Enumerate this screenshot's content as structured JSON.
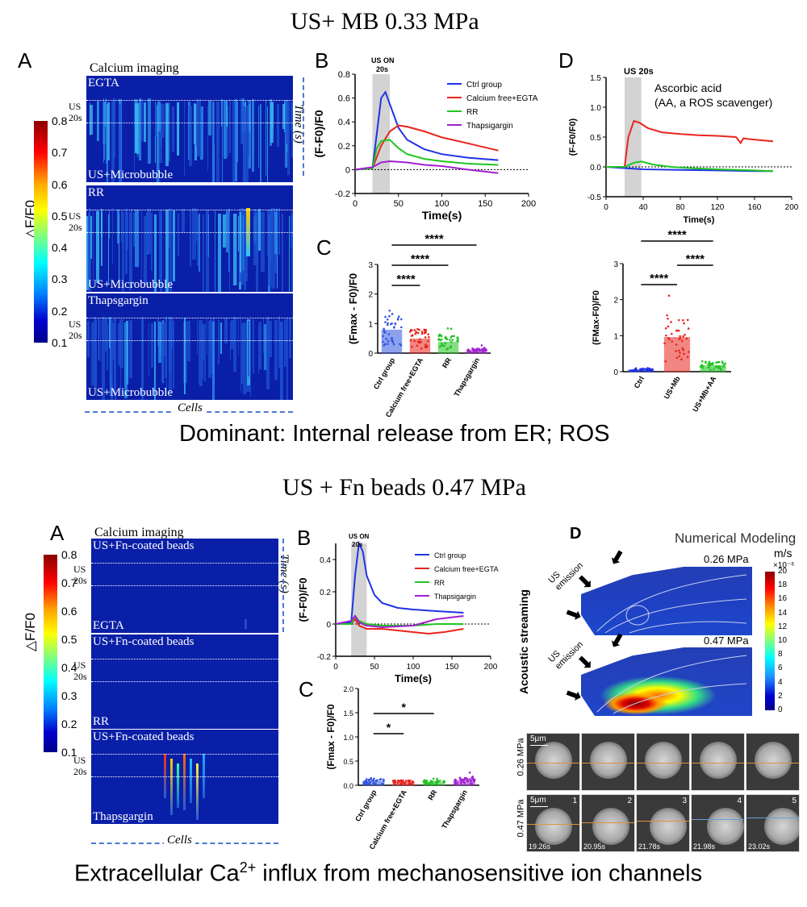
{
  "section1": {
    "title": "US+ MB 0.33 MPa",
    "caption": "Dominant: Internal release from ER; ROS"
  },
  "section2": {
    "title": "US + Fn beads 0.47 MPa",
    "caption_pre": "Extracellular Ca",
    "caption_sup": "2+",
    "caption_post": " influx from mechanosensitive ion channels"
  },
  "panelA1": {
    "letter": "A",
    "top_label": "Calcium imaging",
    "colorbar_title": "△F/F0",
    "colorbar_ticks": [
      "0.8",
      "0.7",
      "0.6",
      "0.5",
      "0.4",
      "0.3",
      "0.2",
      "0.1"
    ],
    "time_label": "Time (s)",
    "cells_label": "Cells",
    "us_label_1": "US",
    "us_label_2": "20s",
    "heatmaps": [
      {
        "top_label": "EGTA",
        "bottom_label": "US+Microbubble"
      },
      {
        "top_label": "RR",
        "bottom_label": "US+Microbubble"
      },
      {
        "top_label": "Thapsgargin",
        "bottom_label": "US+Microbubble"
      }
    ]
  },
  "panelA2": {
    "letter": "A",
    "top_label": "Calcium imaging",
    "colorbar_title": "△F/F0",
    "colorbar_ticks": [
      "0.8",
      "0.7",
      "0.6",
      "0.5",
      "0.4",
      "0.3",
      "0.2",
      "0.1"
    ],
    "time_label": "Time (s)",
    "cells_label": "Cells",
    "us_label_1": "US",
    "us_label_2": "20s",
    "heatmaps": [
      {
        "top_label": "US+Fn-coated beads",
        "bottom_label": "EGTA"
      },
      {
        "top_label": "US+Fn-coated beads",
        "bottom_label": "RR"
      },
      {
        "top_label": "US+Fn-coated beads",
        "bottom_label": "Thapsgargin"
      }
    ]
  },
  "panelD2": {
    "letter": "D",
    "title": "Numerical Modeling",
    "unit": "m/s",
    "unit_exp": "×10⁻⁶",
    "side_label": "Acoustic streaming",
    "emission_label": "US emission",
    "pressure_1": "0.26 MPa",
    "pressure_2": "0.47 MPa",
    "colorbar_ticks": [
      "20",
      "18",
      "16",
      "14",
      "12",
      "10",
      "8",
      "6",
      "4",
      "2",
      "0"
    ],
    "micro": {
      "scale_label": "5μm",
      "row1_label": "0.26 MPa",
      "row2_label": "0.47 MPa",
      "frame_numbers": [
        "1",
        "2",
        "3",
        "4",
        "5"
      ],
      "times": [
        "19.26s",
        "20.95s",
        "21.78s",
        "21.98s",
        "23.02s"
      ]
    }
  },
  "chart_data": [
    {
      "id": "B1",
      "panel": "B",
      "type": "line",
      "ylabel": "(F-F0)/F0",
      "xlabel": "Time(s)",
      "xlim": [
        0,
        200
      ],
      "ylim": [
        -0.2,
        0.8
      ],
      "xticks": [
        "0",
        "50",
        "100",
        "150",
        "200"
      ],
      "yticks": [
        "-0.2",
        "0",
        "0.2",
        "0.4",
        "0.6",
        "0.8"
      ],
      "annotation_1": "US ON",
      "annotation_2": "20s",
      "shade": [
        20,
        40
      ],
      "legend_position": "top-right",
      "series": [
        {
          "name": "Ctrl group",
          "color": "#1f33e6",
          "x": [
            0,
            20,
            25,
            30,
            35,
            40,
            50,
            60,
            80,
            100,
            130,
            165
          ],
          "y": [
            0,
            0.01,
            0.3,
            0.6,
            0.65,
            0.55,
            0.35,
            0.25,
            0.17,
            0.13,
            0.1,
            0.08
          ]
        },
        {
          "name": "Calcium free+EGTA",
          "color": "#e8251f",
          "x": [
            0,
            20,
            30,
            40,
            50,
            60,
            80,
            100,
            130,
            165
          ],
          "y": [
            0,
            0.01,
            0.2,
            0.32,
            0.37,
            0.36,
            0.32,
            0.27,
            0.22,
            0.16
          ]
        },
        {
          "name": "RR",
          "color": "#22c422",
          "x": [
            0,
            20,
            25,
            30,
            40,
            50,
            60,
            80,
            100,
            130,
            165
          ],
          "y": [
            0,
            0.01,
            0.18,
            0.24,
            0.25,
            0.18,
            0.13,
            0.09,
            0.07,
            0.05,
            0.04
          ]
        },
        {
          "name": "Thapsigargin",
          "color": "#a020d0",
          "x": [
            0,
            20,
            30,
            40,
            60,
            80,
            100,
            130,
            165
          ],
          "y": [
            0,
            0.02,
            0.06,
            0.07,
            0.06,
            0.04,
            0.03,
            0.0,
            -0.03
          ]
        }
      ]
    },
    {
      "id": "D1",
      "panel": "D",
      "type": "line",
      "ylabel": "(F-F0/F0)",
      "xlabel": "Time(s)",
      "xlim": [
        0,
        200
      ],
      "ylim": [
        -0.5,
        1.5
      ],
      "xticks": [
        "0",
        "40",
        "80",
        "120",
        "160",
        "200"
      ],
      "yticks": [
        "-0.5",
        "0.0",
        "0.5",
        "1.0",
        "1.5"
      ],
      "annotation_1": "US 20s",
      "annotation_2": "Ascorbic acid",
      "annotation_3": "(AA, a ROS scavenger)",
      "shade": [
        20,
        38
      ],
      "series": [
        {
          "color": "#1f33e6",
          "x": [
            0,
            20,
            40,
            80,
            120,
            160,
            180
          ],
          "y": [
            0,
            -0.02,
            -0.04,
            -0.05,
            -0.06,
            -0.07,
            -0.07
          ]
        },
        {
          "color": "#e8251f",
          "x": [
            0,
            20,
            24,
            30,
            36,
            45,
            60,
            80,
            100,
            120,
            140,
            145,
            148,
            152,
            165,
            180
          ],
          "y": [
            0,
            0.0,
            0.5,
            0.77,
            0.74,
            0.65,
            0.58,
            0.55,
            0.53,
            0.52,
            0.5,
            0.4,
            0.48,
            0.47,
            0.45,
            0.43
          ]
        },
        {
          "color": "#22c422",
          "x": [
            0,
            20,
            30,
            38,
            50,
            70,
            90,
            120,
            160,
            180
          ],
          "y": [
            0,
            0.0,
            0.07,
            0.09,
            0.04,
            0.0,
            -0.02,
            -0.04,
            -0.06,
            -0.07
          ]
        }
      ]
    },
    {
      "id": "C1",
      "panel": "C",
      "type": "bar",
      "ylabel": "(Fmax - F0)/F0",
      "categories": [
        "Ctrl group",
        "Calcium free+EGTA",
        "RR",
        "Thapsgargin"
      ],
      "values": [
        0.78,
        0.48,
        0.37,
        0.1
      ],
      "colors": [
        "#3355e0",
        "#e8251f",
        "#22c422",
        "#a020d0"
      ],
      "ylim": [
        0,
        3
      ],
      "yticks": [
        "0",
        "1",
        "2",
        "3"
      ],
      "significance": [
        {
          "from": 0,
          "to": 1,
          "label": "****"
        },
        {
          "from": 0,
          "to": 2,
          "label": "****"
        },
        {
          "from": 0,
          "to": 3,
          "label": "****"
        }
      ]
    },
    {
      "id": "D1b",
      "panel": "D",
      "type": "bar",
      "ylabel": "(FMax-F0)/F0",
      "categories": [
        "Ctrl",
        "US+Mb",
        "US+Mb+AA"
      ],
      "values": [
        0.05,
        0.95,
        0.17
      ],
      "colors": [
        "#1f33e6",
        "#e8251f",
        "#22c422"
      ],
      "ylim": [
        0,
        3
      ],
      "yticks": [
        "0",
        "1",
        "2",
        "3"
      ],
      "significance": [
        {
          "from": 0,
          "to": 1,
          "label": "****"
        },
        {
          "from": 0,
          "to": 2,
          "label": "****"
        },
        {
          "from": 1,
          "to": 2,
          "label": "****"
        }
      ]
    },
    {
      "id": "B2",
      "panel": "B",
      "type": "line",
      "ylabel": "(F-F0)/F0",
      "xlabel": "Time(s)",
      "xlim": [
        0,
        200
      ],
      "ylim": [
        -0.2,
        0.5
      ],
      "xticks": [
        "0",
        "50",
        "100",
        "150",
        "200"
      ],
      "yticks": [
        "-0.2",
        "0",
        "0.2",
        "0.4"
      ],
      "annotation_1": "US ON",
      "annotation_2": "20s",
      "shade": [
        20,
        40
      ],
      "legend_position": "top-right",
      "series": [
        {
          "name": "Ctrl group",
          "color": "#1f33e6",
          "x": [
            0,
            20,
            25,
            30,
            35,
            40,
            50,
            60,
            80,
            100,
            130,
            165
          ],
          "y": [
            0,
            0.01,
            0.3,
            0.5,
            0.45,
            0.3,
            0.18,
            0.13,
            0.1,
            0.09,
            0.08,
            0.07
          ]
        },
        {
          "name": "Calcium free+EGTA",
          "color": "#e8251f",
          "x": [
            0,
            20,
            25,
            30,
            40,
            60,
            80,
            100,
            120,
            140,
            165
          ],
          "y": [
            0,
            0.0,
            0.03,
            -0.01,
            -0.03,
            -0.03,
            -0.04,
            -0.05,
            -0.06,
            -0.05,
            -0.03
          ]
        },
        {
          "name": "RR",
          "color": "#22c422",
          "x": [
            0,
            20,
            25,
            30,
            40,
            60,
            100,
            130,
            165
          ],
          "y": [
            0,
            0.0,
            0.05,
            0.02,
            0.0,
            -0.01,
            -0.01,
            0.0,
            0.0
          ]
        },
        {
          "name": "Thapsigargin",
          "color": "#a020d0",
          "x": [
            0,
            20,
            25,
            30,
            40,
            60,
            100,
            130,
            165
          ],
          "y": [
            0,
            0.02,
            0.05,
            0.01,
            -0.01,
            -0.02,
            -0.01,
            0.03,
            0.05
          ]
        }
      ]
    },
    {
      "id": "C2",
      "panel": "C",
      "type": "bar",
      "ylabel": "(Fmax - F0)/F0",
      "categories": [
        "Ctrl group",
        "Calcium free+EGTA",
        "RR",
        "Thapsgargin"
      ],
      "values": [
        0.08,
        0.06,
        0.06,
        0.1
      ],
      "colors": [
        "#3355e0",
        "#e8251f",
        "#22c422",
        "#a020d0"
      ],
      "ylim": [
        0,
        2
      ],
      "yticks": [
        "0.0",
        "0.5",
        "1.0",
        "1.5",
        "2.0"
      ],
      "significance": [
        {
          "from": 0,
          "to": 1,
          "label": "*"
        },
        {
          "from": 0,
          "to": 2,
          "label": "*"
        }
      ]
    }
  ]
}
